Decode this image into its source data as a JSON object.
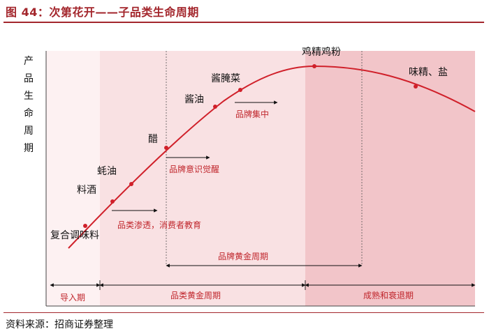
{
  "title": "图 44：次第花开——子品类生命周期",
  "source": "资料来源：招商证券整理",
  "colors": {
    "curve": "#d0202a",
    "accent": "#a3262c",
    "zone_intro": "#fdf1f2",
    "zone_golden": "#f9e1e3",
    "zone_mature": "#f2c5c9",
    "label_red": "#c0262c"
  },
  "y_axis_label": "产品生命周期",
  "curve_points": [
    {
      "label": "复合调味料"
    },
    {
      "label": "料酒"
    },
    {
      "label": "蚝油"
    },
    {
      "label": "醋"
    },
    {
      "label": "酱油"
    },
    {
      "label": "酱腌菜"
    },
    {
      "label": "鸡精鸡粉"
    },
    {
      "label": "味精、盐"
    }
  ],
  "annotations": {
    "category_penetration": "品类渗透，消费者教育",
    "brand_awareness": "品牌意识觉醒",
    "brand_concentration": "品牌集中",
    "brand_golden_period": "品牌黄金周期"
  },
  "stages": {
    "intro": "导入期",
    "golden": "品类黄金周期",
    "mature": "成熟和衰退期"
  }
}
